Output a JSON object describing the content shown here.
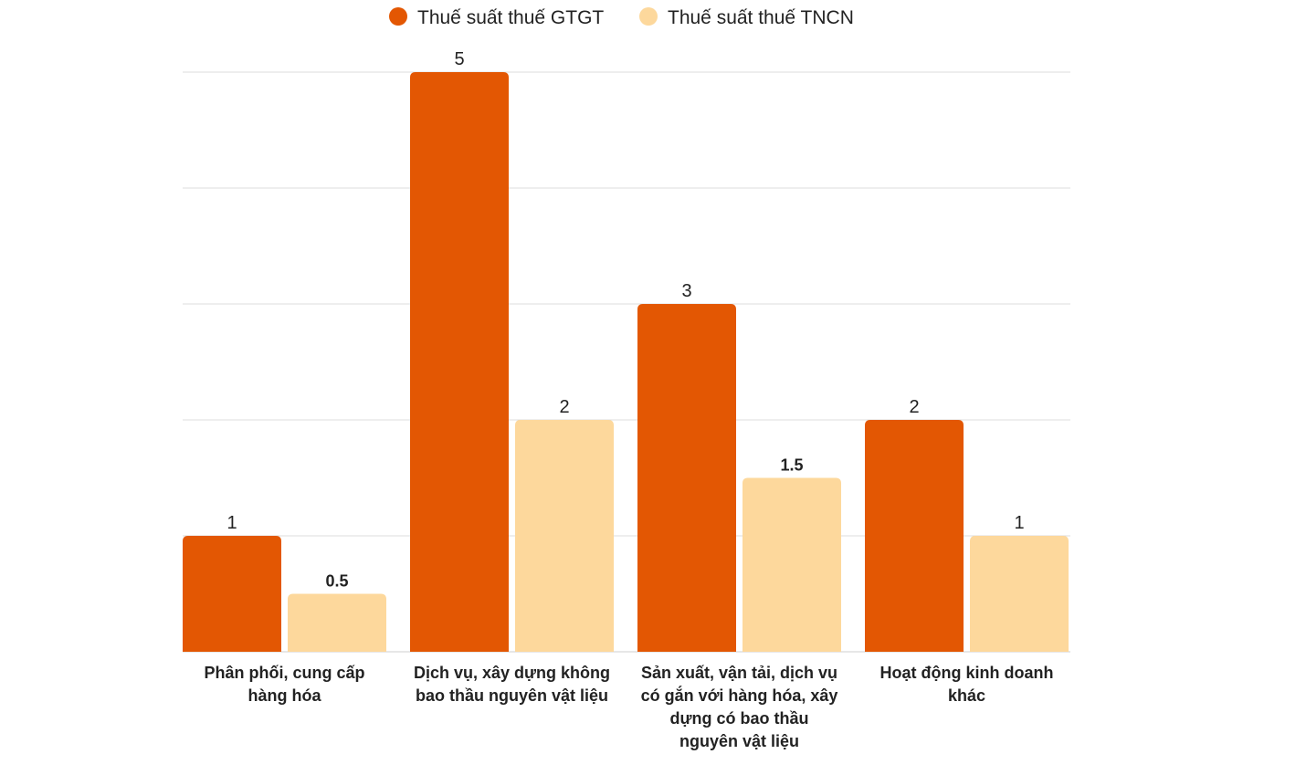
{
  "chart_data": {
    "type": "bar",
    "categories": [
      [
        "Phân phối, cung cấp",
        "hàng hóa"
      ],
      [
        "Dịch vụ, xây dựng không",
        "bao thầu nguyên vật liệu"
      ],
      [
        "Sản xuất, vận tải, dịch vụ",
        "có gắn với hàng hóa, xây",
        "dựng có bao thầu",
        "nguyên vật liệu"
      ],
      [
        "Hoạt động kinh doanh",
        "khác"
      ]
    ],
    "series": [
      {
        "name": "Thuế suất thuế GTGT",
        "color": "#E35703",
        "values": [
          1,
          5,
          3,
          2
        ],
        "labels": [
          "1",
          "5",
          "3",
          "2"
        ]
      },
      {
        "name": "Thuế suất thuế TNCN",
        "color": "#FDD89C",
        "values": [
          0.5,
          2,
          1.5,
          1
        ],
        "labels": [
          "0.5",
          "2",
          "1.5",
          "1"
        ]
      }
    ],
    "ylim": [
      0,
      5
    ],
    "grid": true,
    "legend_position": "top-center",
    "title": "",
    "xlabel": "",
    "ylabel": ""
  }
}
